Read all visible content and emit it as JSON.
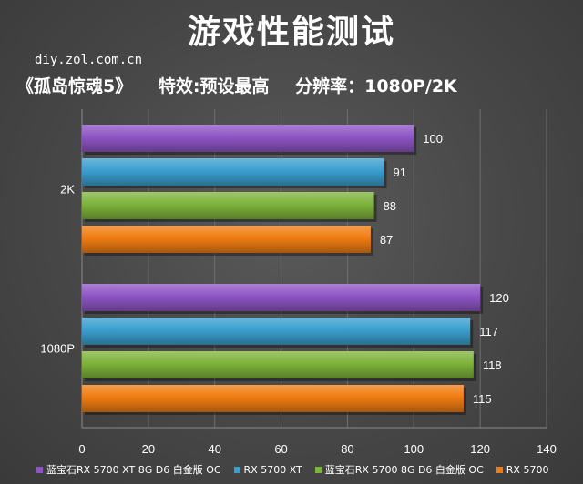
{
  "title": "游戏性能测试",
  "site": "diy.zol.com.cn",
  "subtitle": {
    "game": "《孤岛惊魂5》",
    "effect": "特效:预设最高",
    "resolution": "分辨率：1080P/2K"
  },
  "chart_data": {
    "type": "bar",
    "orientation": "horizontal",
    "categories": [
      "2K",
      "1080P"
    ],
    "series": [
      {
        "name": "蓝宝石RX 5700 XT 8G D6 白金版 OC",
        "color": "#8e55c4",
        "values": [
          100,
          120
        ]
      },
      {
        "name": "RX 5700 XT",
        "color": "#3a9fcf",
        "values": [
          91,
          117
        ]
      },
      {
        "name": "蓝宝石RX 5700 8G D6 白金版 OC",
        "color": "#7db33b",
        "values": [
          88,
          118
        ]
      },
      {
        "name": "RX 5700",
        "color": "#f07c12",
        "values": [
          87,
          115
        ]
      }
    ],
    "xlim": [
      0,
      140
    ],
    "xticks": [
      0,
      20,
      40,
      60,
      80,
      100,
      120,
      140
    ],
    "grid": true,
    "legend_position": "bottom"
  }
}
